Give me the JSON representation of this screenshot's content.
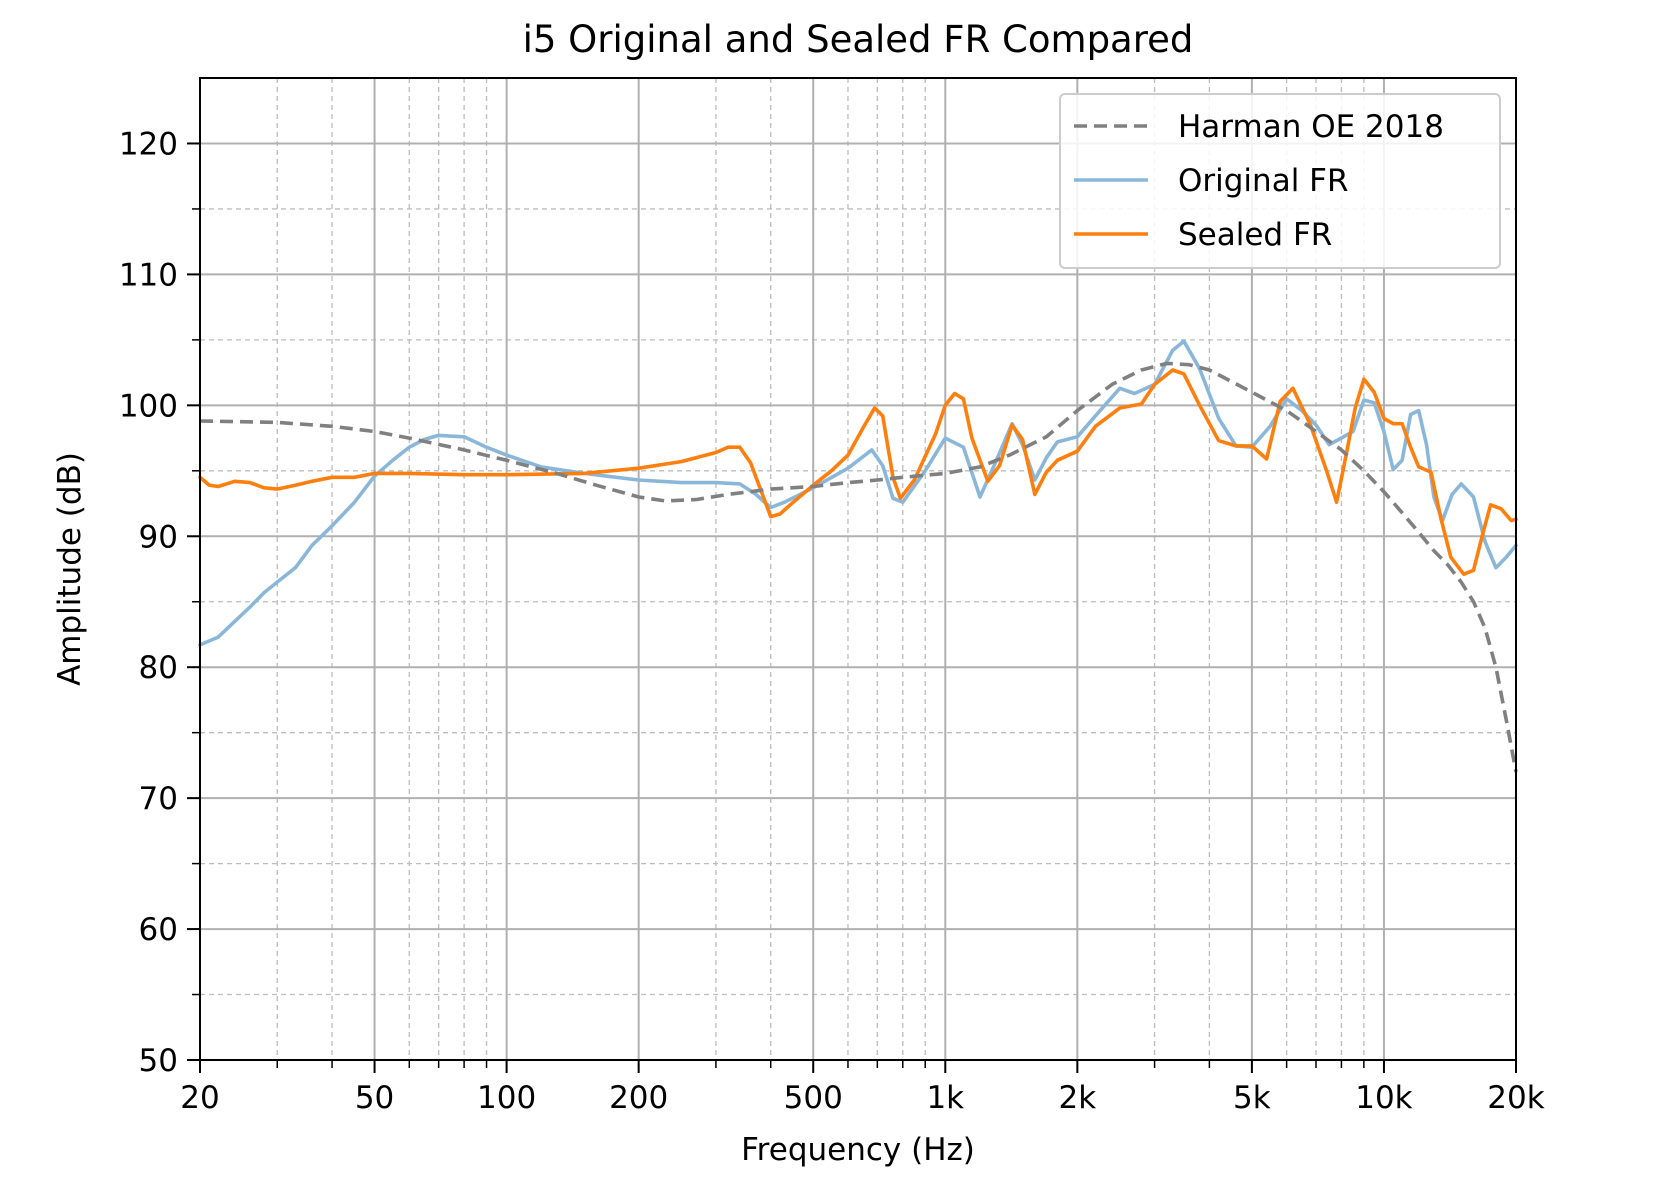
{
  "chart_data": {
    "type": "line",
    "title": "i5 Original and Sealed FR Compared",
    "xlabel": "Frequency (Hz)",
    "ylabel": "Amplitude (dB)",
    "xscale": "log",
    "xlim": [
      20,
      20000
    ],
    "ylim": [
      50,
      125
    ],
    "grid": true,
    "legend": "top-right",
    "x_ticks": [
      {
        "value": 20,
        "label": "20"
      },
      {
        "value": 50,
        "label": "50"
      },
      {
        "value": 100,
        "label": "100"
      },
      {
        "value": 200,
        "label": "200"
      },
      {
        "value": 500,
        "label": "500"
      },
      {
        "value": 1000,
        "label": "1k"
      },
      {
        "value": 2000,
        "label": "2k"
      },
      {
        "value": 5000,
        "label": "5k"
      },
      {
        "value": 10000,
        "label": "10k"
      },
      {
        "value": 20000,
        "label": "20k"
      }
    ],
    "y_ticks": [
      50,
      60,
      70,
      80,
      90,
      100,
      110,
      120
    ],
    "series": [
      {
        "name": "Harman OE 2018",
        "color": "#808080",
        "style": "dashed",
        "points": [
          [
            20,
            98.8
          ],
          [
            30,
            98.7
          ],
          [
            40,
            98.4
          ],
          [
            50,
            98.0
          ],
          [
            60,
            97.5
          ],
          [
            80,
            96.6
          ],
          [
            100,
            95.8
          ],
          [
            130,
            94.8
          ],
          [
            160,
            93.9
          ],
          [
            200,
            93.0
          ],
          [
            230,
            92.7
          ],
          [
            270,
            92.8
          ],
          [
            320,
            93.2
          ],
          [
            400,
            93.6
          ],
          [
            500,
            93.8
          ],
          [
            600,
            94.1
          ],
          [
            700,
            94.3
          ],
          [
            800,
            94.5
          ],
          [
            1000,
            94.8
          ],
          [
            1200,
            95.3
          ],
          [
            1400,
            96.2
          ],
          [
            1700,
            97.6
          ],
          [
            2000,
            99.6
          ],
          [
            2400,
            101.6
          ],
          [
            2800,
            102.7
          ],
          [
            3200,
            103.2
          ],
          [
            3600,
            103.1
          ],
          [
            4000,
            102.7
          ],
          [
            5000,
            101.0
          ],
          [
            6000,
            99.6
          ],
          [
            7000,
            98.0
          ],
          [
            8000,
            96.6
          ],
          [
            9000,
            95.0
          ],
          [
            10000,
            93.4
          ],
          [
            11000,
            91.8
          ],
          [
            12000,
            90.3
          ],
          [
            13000,
            88.9
          ],
          [
            14000,
            87.8
          ],
          [
            15000,
            86.5
          ],
          [
            16000,
            85.0
          ],
          [
            17000,
            83.0
          ],
          [
            18000,
            80.0
          ],
          [
            19000,
            76.0
          ],
          [
            20000,
            72.0
          ]
        ]
      },
      {
        "name": "Original FR",
        "color": "#8ab7d9",
        "style": "solid",
        "points": [
          [
            20,
            81.7
          ],
          [
            22,
            82.3
          ],
          [
            24,
            83.5
          ],
          [
            26,
            84.6
          ],
          [
            28,
            85.7
          ],
          [
            30,
            86.5
          ],
          [
            33,
            87.6
          ],
          [
            36,
            89.3
          ],
          [
            40,
            90.8
          ],
          [
            45,
            92.6
          ],
          [
            50,
            94.6
          ],
          [
            55,
            95.8
          ],
          [
            60,
            96.8
          ],
          [
            65,
            97.4
          ],
          [
            70,
            97.7
          ],
          [
            80,
            97.6
          ],
          [
            90,
            96.8
          ],
          [
            100,
            96.2
          ],
          [
            120,
            95.3
          ],
          [
            150,
            94.8
          ],
          [
            200,
            94.3
          ],
          [
            250,
            94.1
          ],
          [
            300,
            94.1
          ],
          [
            340,
            94.0
          ],
          [
            370,
            93.2
          ],
          [
            400,
            92.2
          ],
          [
            430,
            92.6
          ],
          [
            500,
            93.7
          ],
          [
            600,
            95.2
          ],
          [
            680,
            96.6
          ],
          [
            720,
            95.4
          ],
          [
            760,
            92.9
          ],
          [
            800,
            92.6
          ],
          [
            900,
            95.0
          ],
          [
            1000,
            97.5
          ],
          [
            1100,
            96.8
          ],
          [
            1200,
            93.0
          ],
          [
            1300,
            95.6
          ],
          [
            1420,
            98.6
          ],
          [
            1500,
            97.0
          ],
          [
            1600,
            94.3
          ],
          [
            1700,
            96.0
          ],
          [
            1800,
            97.2
          ],
          [
            2000,
            97.6
          ],
          [
            2200,
            99.2
          ],
          [
            2500,
            101.3
          ],
          [
            2700,
            100.9
          ],
          [
            3000,
            101.6
          ],
          [
            3300,
            104.2
          ],
          [
            3500,
            104.9
          ],
          [
            3800,
            102.8
          ],
          [
            4200,
            99.0
          ],
          [
            4600,
            96.9
          ],
          [
            5000,
            96.8
          ],
          [
            5500,
            98.4
          ],
          [
            6000,
            100.5
          ],
          [
            6500,
            99.6
          ],
          [
            7000,
            98.5
          ],
          [
            7500,
            97.0
          ],
          [
            8000,
            97.5
          ],
          [
            8500,
            98.0
          ],
          [
            9000,
            100.4
          ],
          [
            9500,
            100.2
          ],
          [
            10000,
            98.0
          ],
          [
            10500,
            95.1
          ],
          [
            11000,
            95.8
          ],
          [
            11500,
            99.3
          ],
          [
            12000,
            99.6
          ],
          [
            12500,
            97.0
          ],
          [
            13000,
            93.0
          ],
          [
            13600,
            91.2
          ],
          [
            14300,
            93.2
          ],
          [
            15000,
            94.0
          ],
          [
            16000,
            93.0
          ],
          [
            17000,
            89.6
          ],
          [
            18000,
            87.6
          ],
          [
            19000,
            88.4
          ],
          [
            20000,
            89.3
          ]
        ]
      },
      {
        "name": "Sealed FR",
        "color": "#ff7f0e",
        "style": "solid",
        "points": [
          [
            20,
            94.5
          ],
          [
            21,
            93.9
          ],
          [
            22,
            93.8
          ],
          [
            24,
            94.2
          ],
          [
            26,
            94.1
          ],
          [
            28,
            93.7
          ],
          [
            30,
            93.6
          ],
          [
            33,
            93.9
          ],
          [
            36,
            94.2
          ],
          [
            40,
            94.5
          ],
          [
            45,
            94.5
          ],
          [
            50,
            94.8
          ],
          [
            60,
            94.8
          ],
          [
            80,
            94.7
          ],
          [
            100,
            94.7
          ],
          [
            150,
            94.8
          ],
          [
            200,
            95.2
          ],
          [
            250,
            95.7
          ],
          [
            300,
            96.4
          ],
          [
            320,
            96.8
          ],
          [
            340,
            96.8
          ],
          [
            360,
            95.6
          ],
          [
            380,
            93.5
          ],
          [
            400,
            91.5
          ],
          [
            420,
            91.7
          ],
          [
            450,
            92.6
          ],
          [
            500,
            93.9
          ],
          [
            550,
            95.0
          ],
          [
            600,
            96.2
          ],
          [
            650,
            98.3
          ],
          [
            690,
            99.8
          ],
          [
            720,
            99.2
          ],
          [
            760,
            94.5
          ],
          [
            790,
            92.9
          ],
          [
            850,
            94.3
          ],
          [
            950,
            97.8
          ],
          [
            1000,
            100.0
          ],
          [
            1050,
            100.9
          ],
          [
            1100,
            100.5
          ],
          [
            1150,
            97.5
          ],
          [
            1250,
            94.2
          ],
          [
            1330,
            95.4
          ],
          [
            1420,
            98.5
          ],
          [
            1500,
            97.4
          ],
          [
            1600,
            93.2
          ],
          [
            1700,
            94.9
          ],
          [
            1800,
            95.8
          ],
          [
            2000,
            96.5
          ],
          [
            2200,
            98.4
          ],
          [
            2500,
            99.8
          ],
          [
            2800,
            100.1
          ],
          [
            3000,
            101.6
          ],
          [
            3300,
            102.7
          ],
          [
            3500,
            102.4
          ],
          [
            3800,
            100.0
          ],
          [
            4200,
            97.3
          ],
          [
            4600,
            96.9
          ],
          [
            5000,
            96.9
          ],
          [
            5400,
            95.9
          ],
          [
            5800,
            100.3
          ],
          [
            6200,
            101.3
          ],
          [
            6800,
            98.5
          ],
          [
            7400,
            95.0
          ],
          [
            7800,
            92.6
          ],
          [
            8200,
            96.2
          ],
          [
            8600,
            99.8
          ],
          [
            9000,
            102.0
          ],
          [
            9500,
            101.0
          ],
          [
            10000,
            99.0
          ],
          [
            10500,
            98.6
          ],
          [
            11000,
            98.6
          ],
          [
            11500,
            96.8
          ],
          [
            12000,
            95.3
          ],
          [
            12800,
            94.9
          ],
          [
            13500,
            91.3
          ],
          [
            14200,
            88.4
          ],
          [
            15200,
            87.1
          ],
          [
            16000,
            87.4
          ],
          [
            16800,
            90.2
          ],
          [
            17500,
            92.4
          ],
          [
            18500,
            92.1
          ],
          [
            19500,
            91.2
          ],
          [
            20000,
            91.3
          ]
        ]
      }
    ]
  }
}
